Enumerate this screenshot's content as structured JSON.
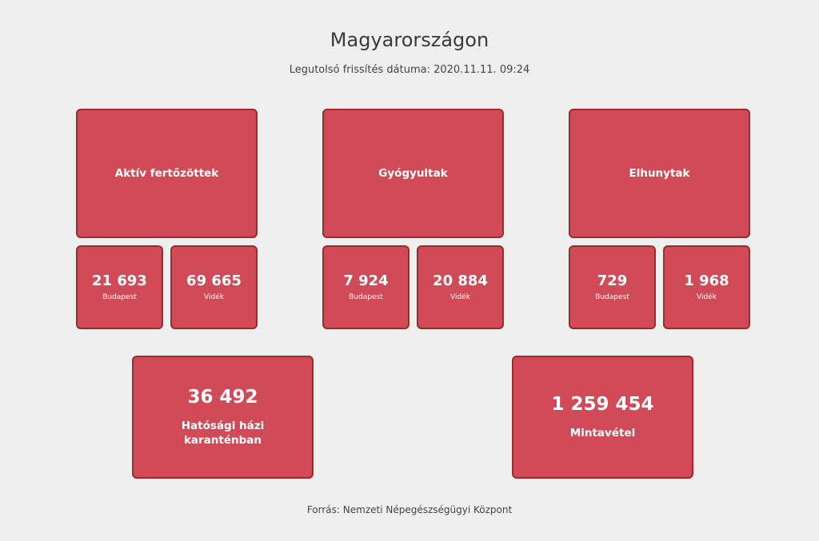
{
  "header": {
    "title": "Magyarországon",
    "subtitle": "Legutolsó frissítés dátuma: 2020.11.11. 09:24"
  },
  "groups": [
    {
      "label": "Aktív fertőzöttek",
      "budapest": {
        "value": "21 693",
        "label": "Budapest"
      },
      "videk": {
        "value": "69 665",
        "label": "Vidék"
      }
    },
    {
      "label": "Gyógyultak",
      "budapest": {
        "value": "7 924",
        "label": "Budapest"
      },
      "videk": {
        "value": "20 884",
        "label": "Vidék"
      }
    },
    {
      "label": "Elhunytak",
      "budapest": {
        "value": "729",
        "label": "Budapest"
      },
      "videk": {
        "value": "1 968",
        "label": "Vidék"
      }
    }
  ],
  "totals": [
    {
      "value": "36 492",
      "label": "Hatósági házi karanténban"
    },
    {
      "value": "1 259 454",
      "label": "Mintavétel"
    }
  ],
  "footer": {
    "source": "Forrás: Nemzeti Népegészségügyi Központ"
  },
  "colors": {
    "box": "#d04a57",
    "border": "#9e2a2b",
    "background": "#efefef"
  }
}
